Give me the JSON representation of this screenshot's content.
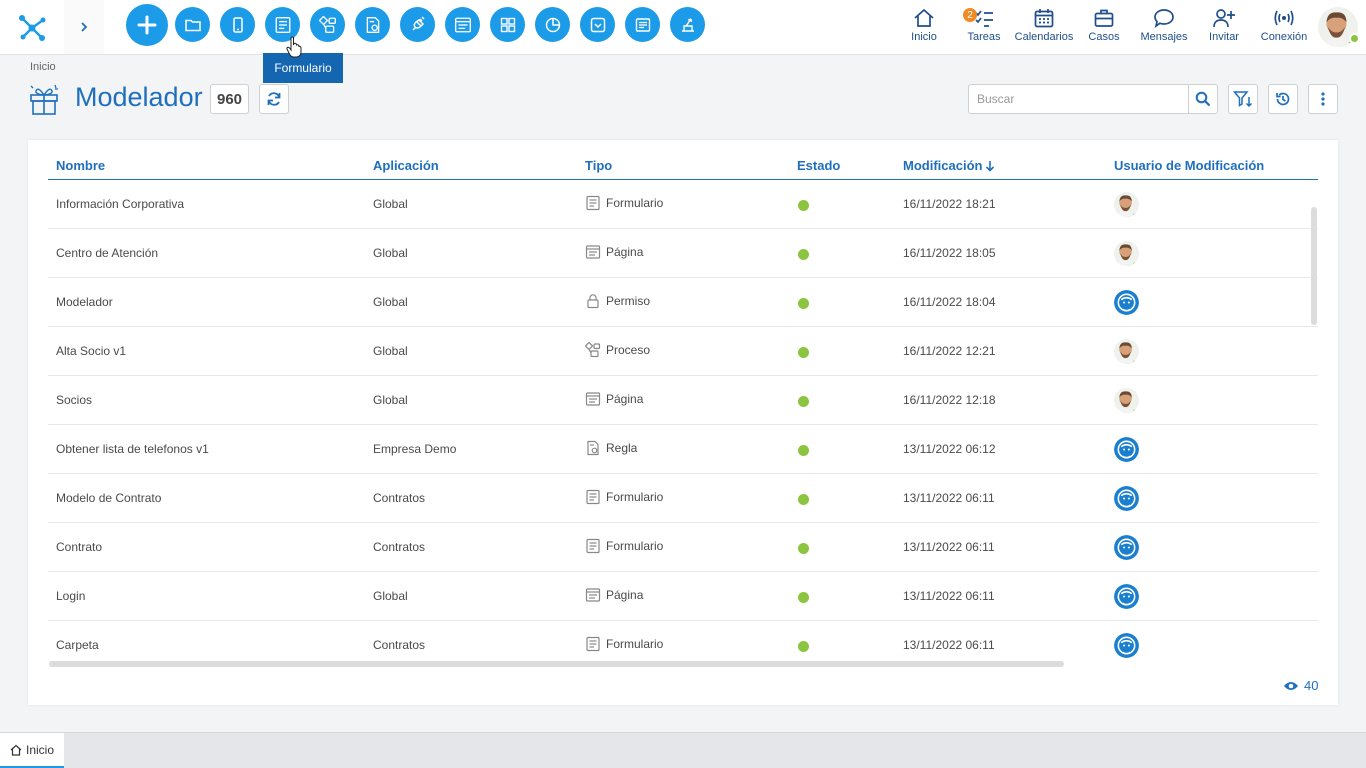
{
  "toolbar": {
    "tools": [
      {
        "name": "add-button",
        "icon": "plus-icon"
      },
      {
        "name": "folder-button",
        "icon": "folder-icon"
      },
      {
        "name": "mobile-button",
        "icon": "mobile-icon"
      },
      {
        "name": "form-button",
        "icon": "form-icon"
      },
      {
        "name": "process-button",
        "icon": "process-icon"
      },
      {
        "name": "rule-button",
        "icon": "rule-icon"
      },
      {
        "name": "connector-button",
        "icon": "plug-icon"
      },
      {
        "name": "page-button",
        "icon": "page-icon"
      },
      {
        "name": "dashboard-button",
        "icon": "grid-icon"
      },
      {
        "name": "chart-button",
        "icon": "pie-chart-icon"
      },
      {
        "name": "dropdown-button",
        "icon": "dropdown-icon"
      },
      {
        "name": "document-button",
        "icon": "document-icon"
      },
      {
        "name": "deploy-button",
        "icon": "deploy-icon"
      }
    ],
    "tooltip": "Formulario"
  },
  "nav": {
    "home": "Inicio",
    "tasks": "Tareas",
    "tasks_badge": "2",
    "calendars": "Calendarios",
    "cases": "Casos",
    "messages": "Mensajes",
    "invite": "Invitar",
    "connection": "Conexión"
  },
  "header": {
    "breadcrumb": "Inicio",
    "title": "Modelador",
    "count": "960",
    "search_placeholder": "Buscar"
  },
  "table": {
    "columns": {
      "name": "Nombre",
      "application": "Aplicación",
      "type": "Tipo",
      "state": "Estado",
      "modified": "Modificación",
      "user": "Usuario de Modificación"
    },
    "rows": [
      {
        "name": "Información Corporativa",
        "application": "Global",
        "type": "Formulario",
        "type_icon": "form-icon",
        "date": "16/11/2022 18:21",
        "user": "photo"
      },
      {
        "name": "Centro de Atención",
        "application": "Global",
        "type": "Página",
        "type_icon": "page-icon",
        "date": "16/11/2022 18:05",
        "user": "photo"
      },
      {
        "name": "Modelador",
        "application": "Global",
        "type": "Permiso",
        "type_icon": "lock-icon",
        "date": "16/11/2022 18:04",
        "user": "default"
      },
      {
        "name": "Alta Socio v1",
        "application": "Global",
        "type": "Proceso",
        "type_icon": "process-icon",
        "date": "16/11/2022 12:21",
        "user": "photo"
      },
      {
        "name": "Socios",
        "application": "Global",
        "type": "Página",
        "type_icon": "page-icon",
        "date": "16/11/2022 12:18",
        "user": "photo"
      },
      {
        "name": "Obtener lista de telefonos v1",
        "application": "Empresa Demo",
        "type": "Regla",
        "type_icon": "rule-icon",
        "date": "13/11/2022 06:12",
        "user": "default"
      },
      {
        "name": "Modelo de Contrato",
        "application": "Contratos",
        "type": "Formulario",
        "type_icon": "form-icon",
        "date": "13/11/2022 06:11",
        "user": "default"
      },
      {
        "name": "Contrato",
        "application": "Contratos",
        "type": "Formulario",
        "type_icon": "form-icon",
        "date": "13/11/2022 06:11",
        "user": "default"
      },
      {
        "name": "Login",
        "application": "Global",
        "type": "Página",
        "type_icon": "page-icon",
        "date": "13/11/2022 06:11",
        "user": "default"
      },
      {
        "name": "Carpeta",
        "application": "Contratos",
        "type": "Formulario",
        "type_icon": "form-icon",
        "date": "13/11/2022 06:11",
        "user": "default"
      }
    ],
    "visible_count": "40"
  },
  "tabs": {
    "home": "Inicio"
  },
  "colors": {
    "accent": "#1b9be8",
    "title_blue": "#1f6fbd",
    "status_green": "#8bc53f",
    "badge_orange": "#f08a24"
  }
}
